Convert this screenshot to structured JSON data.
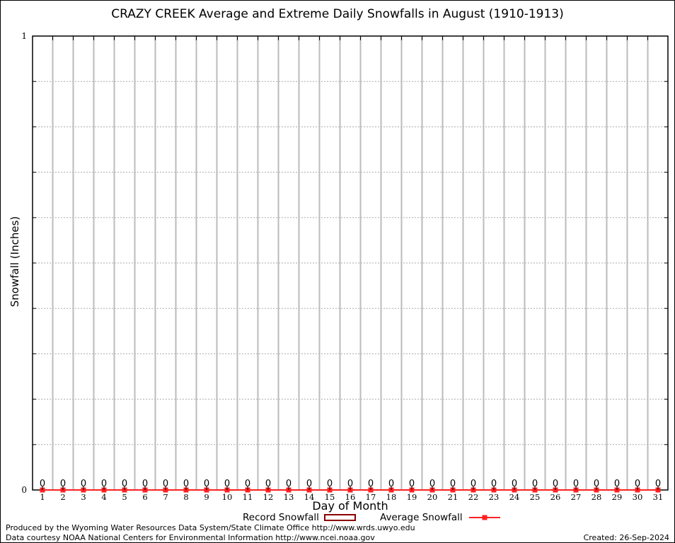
{
  "chart_data": {
    "type": "line",
    "title": "CRAZY CREEK Average and Extreme Daily Snowfalls in August (1910-1913)",
    "xlabel": "Day of Month",
    "ylabel": "Snowfall (Inches)",
    "ylim": [
      0,
      1
    ],
    "y_tick_labels": [
      "0",
      "1"
    ],
    "grid": true,
    "legend_placement": "bottom",
    "categories": [
      1,
      2,
      3,
      4,
      5,
      6,
      7,
      8,
      9,
      10,
      11,
      12,
      13,
      14,
      15,
      16,
      17,
      18,
      19,
      20,
      21,
      22,
      23,
      24,
      25,
      26,
      27,
      28,
      29,
      30,
      31
    ],
    "series": [
      {
        "name": "Record Snowfall",
        "color": "#8b0000",
        "values": [
          0,
          0,
          0,
          0,
          0,
          0,
          0,
          0,
          0,
          0,
          0,
          0,
          0,
          0,
          0,
          0,
          0,
          0,
          0,
          0,
          0,
          0,
          0,
          0,
          0,
          0,
          0,
          0,
          0,
          0,
          0
        ]
      },
      {
        "name": "Average Snowfall",
        "color": "#ff2020",
        "values": [
          0,
          0,
          0,
          0,
          0,
          0,
          0,
          0,
          0,
          0,
          0,
          0,
          0,
          0,
          0,
          0,
          0,
          0,
          0,
          0,
          0,
          0,
          0,
          0,
          0,
          0,
          0,
          0,
          0,
          0,
          0
        ]
      }
    ],
    "data_labels": [
      "0",
      "0",
      "0",
      "0",
      "0",
      "0",
      "0",
      "0",
      "0",
      "0",
      "0",
      "0",
      "0",
      "0",
      "0",
      "0",
      "0",
      "0",
      "0",
      "0",
      "0",
      "0",
      "0",
      "0",
      "0",
      "0",
      "0",
      "0",
      "0",
      "0",
      "0"
    ]
  },
  "footer": {
    "produced_by": "Produced by the Wyoming Water Resources Data System/State Climate Office http://www.wrds.uwyo.edu",
    "data_courtesy": "Data courtesy NOAA National Centers for Environmental Information http://www.ncei.noaa.gov",
    "created": "Created: 26-Sep-2024"
  }
}
